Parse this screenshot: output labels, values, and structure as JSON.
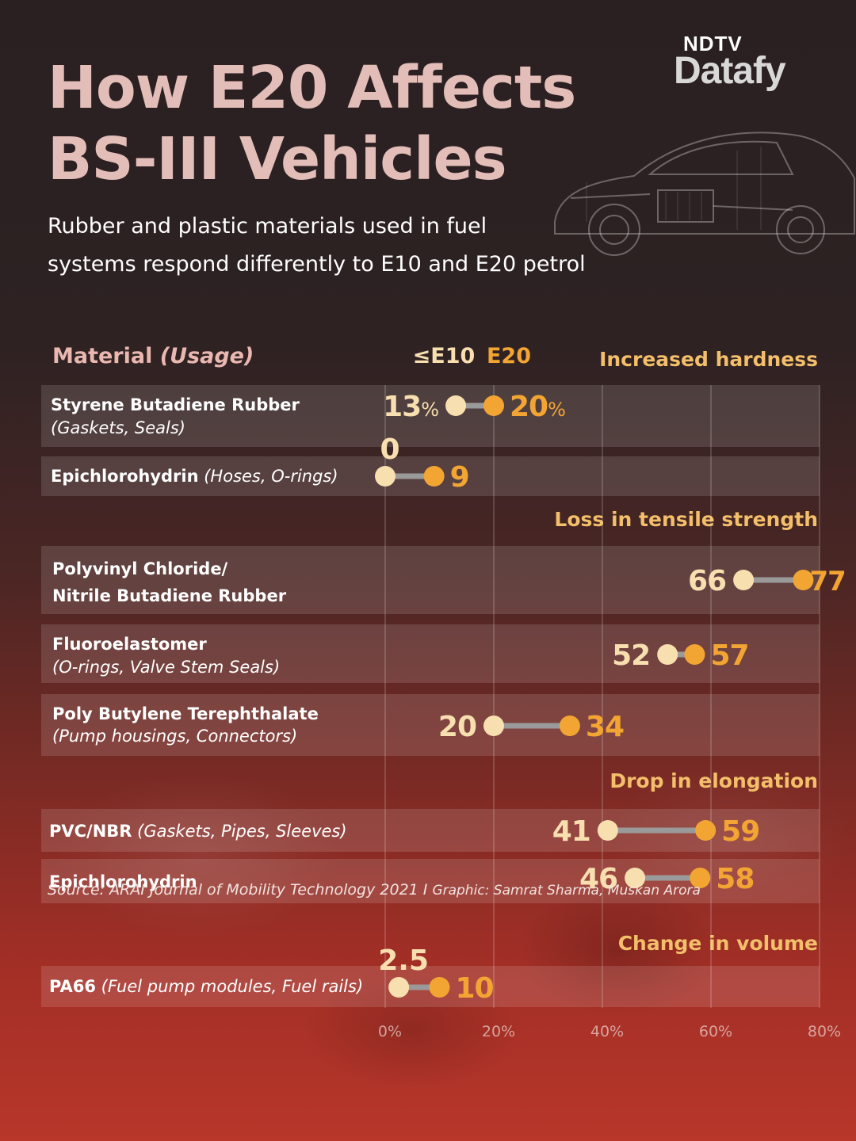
{
  "title_line1": "How E20 Affects",
  "title_line2": "BS-III Vehicles",
  "subtitle_line1": "Rubber and plastic materials used in fuel",
  "subtitle_line2": "systems respond differently to E10 and E20 petrol",
  "logo_top": "NDTV",
  "logo_bottom": "Datafy",
  "source": "Source: ARAI Journal of Mobility Technology 2021 I",
  "credit": "Graphic: Samrat Sharma, Muskan Arora",
  "colors": {
    "e10": "#f8dfb0",
    "e20": "#f3a533",
    "title": "#e3bdb8",
    "section_label": "#f3bf6b",
    "connector": "#9a9a9a"
  },
  "chart_data": {
    "type": "dumbbell",
    "header_material": "Material",
    "header_usage": "(Usage)",
    "legend": {
      "e10_label": "≤E10",
      "e20_label": "E20"
    },
    "xlim": [
      0,
      80
    ],
    "x_ticks": [
      {
        "value": 0,
        "label": "0%"
      },
      {
        "value": 20,
        "label": "20%"
      },
      {
        "value": 40,
        "label": "40%"
      },
      {
        "value": 60,
        "label": "60%"
      },
      {
        "value": 80,
        "label": "80%"
      }
    ],
    "groups": [
      {
        "label": "Increased hardness",
        "rows": [
          {
            "name": "Styrene Butadiene Rubber",
            "usage": "(Gaskets, Seals)",
            "e10": 13,
            "e20": 20,
            "e10_label": "13",
            "e20_label": "20",
            "unit": "%"
          },
          {
            "name": "Epichlorohydrin",
            "usage": "(Hoses, O-rings)",
            "e10": 0,
            "e20": 9,
            "e10_label": "0",
            "e20_label": "9",
            "unit": ""
          }
        ]
      },
      {
        "label": "Loss in tensile strength",
        "rows": [
          {
            "name": "Polyvinyl Chloride/",
            "name2": "Nitrile Butadiene Rubber",
            "usage": "",
            "e10": 66,
            "e20": 77,
            "e10_label": "66",
            "e20_label": "77",
            "unit": ""
          },
          {
            "name": "Fluoroelastomer",
            "usage": "(O-rings, Valve Stem Seals)",
            "e10": 52,
            "e20": 57,
            "e10_label": "52",
            "e20_label": "57",
            "unit": ""
          },
          {
            "name": "Poly Butylene Terephthalate",
            "usage": "(Pump housings, Connectors)",
            "e10": 20,
            "e20": 34,
            "e10_label": "20",
            "e20_label": "34",
            "unit": ""
          }
        ]
      },
      {
        "label": "Drop in elongation",
        "rows": [
          {
            "name": "PVC/NBR",
            "usage": "(Gaskets, Pipes, Sleeves)",
            "e10": 41,
            "e20": 59,
            "e10_label": "41",
            "e20_label": "59",
            "unit": ""
          },
          {
            "name": "Epichlorohydrin",
            "usage": "",
            "e10": 46,
            "e20": 58,
            "e10_label": "46",
            "e20_label": "58",
            "unit": ""
          }
        ]
      },
      {
        "label": "Change in volume",
        "rows": [
          {
            "name": "PA66",
            "usage": "(Fuel pump modules, Fuel rails)",
            "e10": 2.5,
            "e20": 10,
            "e10_label": "2.5",
            "e20_label": "10",
            "unit": ""
          }
        ]
      }
    ]
  }
}
